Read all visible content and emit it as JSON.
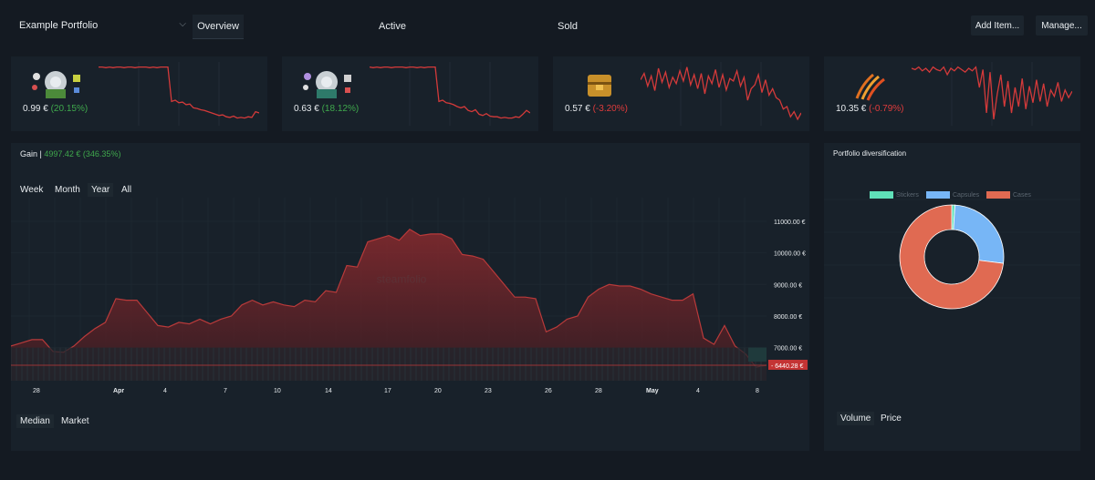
{
  "header": {
    "portfolio": "Example Portfolio",
    "tabs": [
      "Overview",
      "Active",
      "Sold"
    ],
    "add_item": "Add Item...",
    "manage": "Manage..."
  },
  "items": [
    {
      "price": "0.99 €",
      "change": "(20.15%)",
      "trend": "positive",
      "icon": "sticker-capsule-icon",
      "series": [
        0.92,
        0.92,
        0.91,
        0.92,
        0.91,
        0.92,
        0.92,
        0.91,
        0.92,
        0.92,
        0.91,
        0.92,
        0.92,
        0.92,
        0.91,
        0.92,
        0.91,
        0.92,
        0.92,
        0.92,
        0.38,
        0.4,
        0.36,
        0.37,
        0.33,
        0.34,
        0.28,
        0.27,
        0.25,
        0.24,
        0.22,
        0.2,
        0.18,
        0.16,
        0.17,
        0.14,
        0.13,
        0.15,
        0.12,
        0.13,
        0.12,
        0.14,
        0.13,
        0.22,
        0.2
      ]
    },
    {
      "price": "0.63 €",
      "change": "(18.12%)",
      "trend": "positive",
      "icon": "sticker-capsule-icon",
      "series": [
        0.92,
        0.91,
        0.92,
        0.91,
        0.92,
        0.92,
        0.91,
        0.92,
        0.92,
        0.92,
        0.91,
        0.92,
        0.92,
        0.91,
        0.92,
        0.91,
        0.92,
        0.92,
        0.92,
        0.38,
        0.4,
        0.36,
        0.35,
        0.33,
        0.3,
        0.28,
        0.3,
        0.24,
        0.22,
        0.25,
        0.18,
        0.16,
        0.19,
        0.15,
        0.14,
        0.14,
        0.12,
        0.13,
        0.12,
        0.12,
        0.14,
        0.13,
        0.18,
        0.24,
        0.2
      ]
    },
    {
      "price": "0.57 €",
      "change": "(-3.20%)",
      "trend": "negative",
      "icon": "weapon-case-icon",
      "series": [
        0.72,
        0.82,
        0.62,
        0.78,
        0.55,
        0.9,
        0.68,
        0.84,
        0.6,
        0.76,
        0.66,
        0.86,
        0.7,
        0.92,
        0.64,
        0.8,
        0.58,
        0.82,
        0.5,
        0.78,
        0.66,
        0.88,
        0.6,
        0.8,
        0.56,
        0.74,
        0.7,
        0.86,
        0.62,
        0.76,
        0.4,
        0.58,
        0.64,
        0.8,
        0.52,
        0.72,
        0.48,
        0.58,
        0.44,
        0.4,
        0.26,
        0.3,
        0.14,
        0.22,
        0.1,
        0.2
      ]
    },
    {
      "price": "10.35 €",
      "change": "(-0.79%)",
      "trend": "negative",
      "icon": "claw-scratch-icon",
      "series": [
        0.9,
        0.88,
        0.92,
        0.86,
        0.9,
        0.84,
        0.92,
        0.88,
        0.86,
        0.92,
        0.8,
        0.9,
        0.86,
        0.92,
        0.88,
        0.84,
        0.9,
        0.86,
        0.92,
        0.6,
        0.88,
        0.2,
        0.84,
        0.1,
        0.5,
        0.8,
        0.3,
        0.7,
        0.2,
        0.6,
        0.3,
        0.74,
        0.26,
        0.62,
        0.36,
        0.72,
        0.38,
        0.66,
        0.3,
        0.56,
        0.46,
        0.68,
        0.38,
        0.56,
        0.44,
        0.54
      ]
    }
  ],
  "gain": {
    "label": "Gain |",
    "value": "4997.42 € (346.35%)",
    "ranges": [
      "Week",
      "Month",
      "Year",
      "All"
    ],
    "selected_range": "Year",
    "bottom": [
      "Median",
      "Market"
    ],
    "watermark": "steamfolio"
  },
  "chart_data": {
    "type": "area",
    "x_tick_labels": [
      "28",
      "Apr",
      "4",
      "7",
      "10",
      "14",
      "17",
      "20",
      "23",
      "26",
      "28",
      "May",
      "4",
      "8"
    ],
    "y_tick_labels": [
      "7000.00 €",
      "8000.00 €",
      "9000.00 €",
      "10000.00 €",
      "11000.00 €"
    ],
    "ylim": [
      5950,
      11750
    ],
    "current_value_label": "6440.28 €",
    "current_value": 6440.28,
    "baseline": 6440.28,
    "volume_band_top": 7000,
    "values": [
      7050,
      7150,
      7250,
      7250,
      6880,
      6850,
      7050,
      7350,
      7600,
      7800,
      8550,
      8500,
      8500,
      8100,
      7700,
      7650,
      7800,
      7750,
      7900,
      7750,
      7900,
      8000,
      8350,
      8500,
      8350,
      8450,
      8350,
      8300,
      8500,
      8450,
      8800,
      8750,
      9600,
      9550,
      10350,
      10450,
      10550,
      10400,
      10750,
      10550,
      10600,
      10600,
      10450,
      9950,
      9900,
      9800,
      9400,
      9000,
      8600,
      8600,
      8550,
      7500,
      7650,
      7900,
      8000,
      8600,
      8850,
      9000,
      8950,
      8950,
      8850,
      8700,
      8600,
      8500,
      8500,
      8700,
      7300,
      7100,
      7700,
      7050,
      6800,
      6380,
      6440
    ]
  },
  "diversification": {
    "title": "Portfolio diversification",
    "legend": [
      {
        "name": "Stickers",
        "color": "#5fe0b8"
      },
      {
        "name": "Capsules",
        "color": "#77b6f6"
      },
      {
        "name": "Cases",
        "color": "#e06a52"
      }
    ],
    "slices": [
      {
        "name": "Stickers",
        "value": 1,
        "color": "#5fe0b8"
      },
      {
        "name": "Capsules",
        "value": 26,
        "color": "#77b6f6"
      },
      {
        "name": "Cases",
        "value": 73,
        "color": "#e06a52"
      }
    ],
    "buttons": [
      "Volume",
      "Price"
    ],
    "selected": "Volume"
  }
}
